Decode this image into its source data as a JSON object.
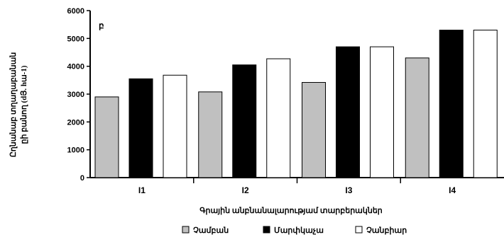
{
  "chart_data": {
    "type": "bar",
    "panel_label": "բ",
    "categories": [
      "I1",
      "I2",
      "I3",
      "I4"
    ],
    "series": [
      {
        "name": "Չամբան",
        "color": "#c0c0c0",
        "values": [
          2900,
          3080,
          3420,
          4300
        ]
      },
      {
        "name": "Մարփկաչա",
        "color": "#000000",
        "values": [
          3550,
          4050,
          4700,
          5300
        ]
      },
      {
        "name": "Չանբիար",
        "color": "#ffffff",
        "values": [
          3680,
          4270,
          4700,
          5300
        ]
      }
    ],
    "ylim": [
      0,
      6000
    ],
    "yticks": [
      0,
      1000,
      2000,
      3000,
      4000,
      5000,
      6000
    ],
    "ylabel_line1": "Ըղնանաբ տղաղաբանան",
    "ylabel_line2": "ըի բանող (dՅ. hա-1)",
    "xlabel": "Գրային անբնանալարությամ տարբերակներ",
    "grid": false,
    "legend_position": "bottom"
  }
}
